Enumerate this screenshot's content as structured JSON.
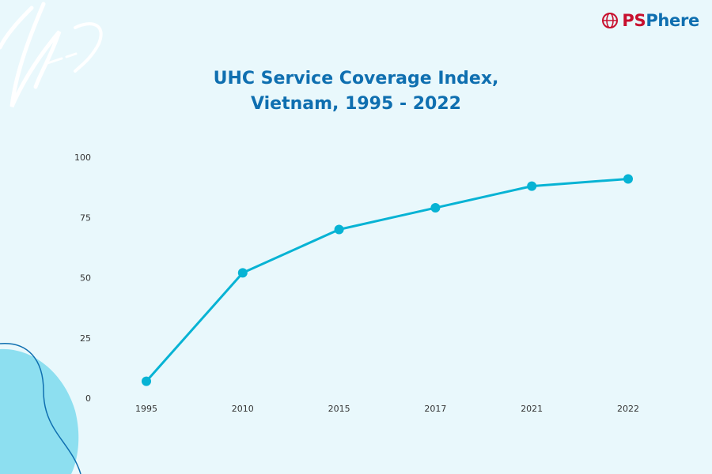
{
  "brand": {
    "name_part1": "PS",
    "name_part2": "Phere",
    "colors": {
      "primary": "#c8102e",
      "secondary": "#0f6fb0"
    }
  },
  "chart_data": {
    "type": "line",
    "title_line1": "UHC Service Coverage Index,",
    "title_line2": "Vietnam, 1995 - 2022",
    "xlabel": "",
    "ylabel": "",
    "categories": [
      "1995",
      "2010",
      "2015",
      "2017",
      "2021",
      "2022"
    ],
    "series": [
      {
        "values": [
          7,
          52,
          70,
          79,
          88,
          91
        ],
        "color": "#07b3d4"
      }
    ],
    "yticks": [
      "0",
      "25",
      "50",
      "75",
      "100"
    ],
    "ylim": [
      0,
      100
    ],
    "grid": false,
    "legend": "none"
  },
  "colors": {
    "background": "#e9f8fc",
    "title": "#0f6fb0",
    "line": "#07b3d4"
  }
}
